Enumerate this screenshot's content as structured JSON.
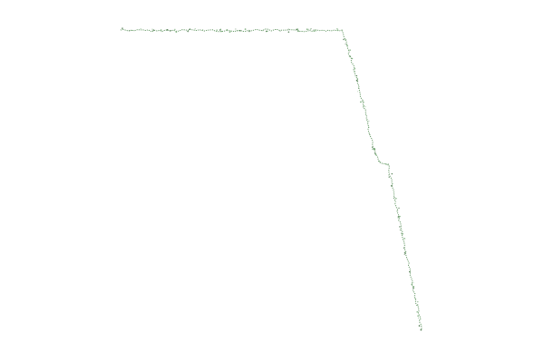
{
  "map": {
    "background": "#ffffff",
    "features": [
      {
        "name": "boundary-line",
        "kind": "coastline-style border trace",
        "stroke": "#3f7f3f",
        "style": "dotted"
      }
    ]
  }
}
